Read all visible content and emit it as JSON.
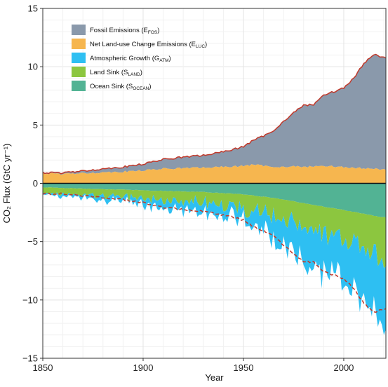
{
  "chart_data": {
    "type": "area",
    "xlabel": "Year",
    "ylabel": "CO₂ Flux (GtC yr⁻¹)",
    "xlim": [
      1850,
      2021
    ],
    "ylim": [
      -15,
      15
    ],
    "x_ticks": [
      1850,
      1900,
      1950,
      2000
    ],
    "y_ticks": [
      -15,
      -10,
      -5,
      0,
      5,
      10,
      15
    ],
    "grid": true,
    "legend_position": "top-left",
    "x": [
      1850,
      1860,
      1870,
      1880,
      1890,
      1900,
      1910,
      1920,
      1930,
      1940,
      1950,
      1955,
      1960,
      1965,
      1970,
      1975,
      1980,
      1985,
      1990,
      1995,
      2000,
      2005,
      2010,
      2015,
      2020
    ],
    "series": [
      {
        "name": "Fossil Emissions (E",
        "subscript": "FOS",
        "key": "fossil",
        "color": "#8a99ab",
        "values": [
          0.05,
          0.1,
          0.2,
          0.3,
          0.4,
          0.55,
          0.8,
          0.95,
          1.05,
          1.3,
          1.65,
          2.1,
          2.55,
          3.1,
          3.9,
          4.6,
          5.3,
          5.3,
          6.1,
          6.4,
          6.8,
          7.7,
          9.0,
          9.8,
          9.6
        ]
      },
      {
        "name": "Net Land-use Change Emissions (E",
        "subscript": "LUC",
        "key": "luc",
        "color": "#f6b64f",
        "values": [
          0.85,
          0.8,
          0.85,
          0.95,
          1.0,
          1.1,
          1.25,
          1.3,
          1.35,
          1.4,
          1.5,
          1.6,
          1.5,
          1.45,
          1.4,
          1.45,
          1.4,
          1.45,
          1.5,
          1.45,
          1.4,
          1.3,
          1.3,
          1.25,
          1.2
        ]
      },
      {
        "name": "Atmospheric Growth (G",
        "subscript": "ATM",
        "key": "atm",
        "color": "#2ebff2",
        "values": [
          0.1,
          0.2,
          0.25,
          0.3,
          0.3,
          0.5,
          0.6,
          0.7,
          0.9,
          0.7,
          0.9,
          1.2,
          1.5,
          1.7,
          2.2,
          2.5,
          3.0,
          3.3,
          3.3,
          3.4,
          3.6,
          4.1,
          4.6,
          5.0,
          5.2
        ]
      },
      {
        "name": "Land Sink (S",
        "subscript": "LAND",
        "key": "land",
        "color": "#8cc63f",
        "values": [
          0.5,
          0.5,
          0.55,
          0.6,
          0.65,
          0.7,
          0.8,
          0.85,
          0.9,
          1.1,
          1.2,
          1.3,
          1.4,
          1.5,
          1.7,
          1.8,
          2.0,
          2.1,
          2.3,
          2.5,
          2.6,
          2.8,
          3.0,
          3.2,
          3.3
        ]
      },
      {
        "name": "Ocean Sink (S",
        "subscript": "OCEAN",
        "key": "ocean",
        "color": "#52b394",
        "values": [
          0.35,
          0.4,
          0.45,
          0.5,
          0.55,
          0.6,
          0.65,
          0.7,
          0.75,
          0.85,
          0.95,
          1.05,
          1.15,
          1.25,
          1.4,
          1.55,
          1.7,
          1.85,
          2.0,
          2.15,
          2.3,
          2.45,
          2.6,
          2.8,
          2.9
        ]
      }
    ],
    "total_emissions_line_color": "#c0392b",
    "total_sink_line_color": "#c0392b"
  }
}
